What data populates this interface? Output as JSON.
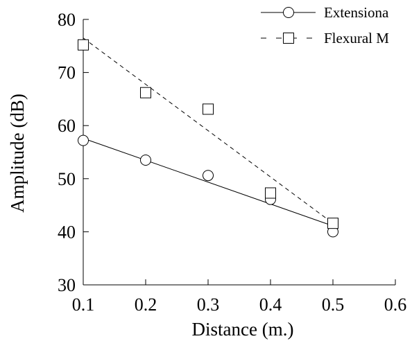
{
  "chart_data": {
    "type": "scatter",
    "title": "",
    "xlabel": "Distance (m.)",
    "ylabel": "Amplitude (dB)",
    "xlim": [
      0.1,
      0.6
    ],
    "ylim": [
      30,
      80
    ],
    "xticks": [
      0.1,
      0.2,
      0.3,
      0.4,
      0.5,
      0.6
    ],
    "yticks": [
      30,
      40,
      50,
      60,
      70,
      80
    ],
    "xtick_labels": [
      "0.1",
      "0.2",
      "0.3",
      "0.4",
      "0.5",
      "0.6"
    ],
    "ytick_labels": [
      "30",
      "40",
      "50",
      "60",
      "70",
      "80"
    ],
    "grid": false,
    "legend_position": "top-right",
    "series": [
      {
        "name": "Extensiona",
        "marker": "circle",
        "line_style": "solid",
        "x": [
          0.1,
          0.2,
          0.3,
          0.4,
          0.5
        ],
        "y": [
          57.2,
          53.5,
          50.6,
          46.1,
          40.0
        ],
        "fit_line": {
          "x": [
            0.1,
            0.5
          ],
          "y": [
            57.6,
            41.1
          ]
        }
      },
      {
        "name": "Flexural M",
        "marker": "square",
        "line_style": "dashed",
        "x": [
          0.1,
          0.2,
          0.3,
          0.4,
          0.5
        ],
        "y": [
          75.2,
          66.2,
          63.1,
          47.3,
          41.6
        ],
        "fit_line": {
          "x": [
            0.1,
            0.5
          ],
          "y": [
            76.5,
            41.6
          ]
        }
      }
    ]
  }
}
